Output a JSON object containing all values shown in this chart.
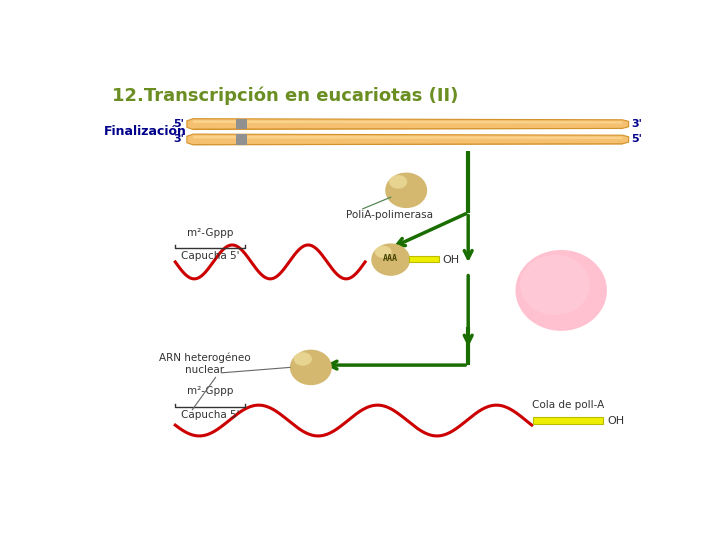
{
  "title": "12.Transcripción en eucariotas (II)",
  "title_color": "#6b8e23",
  "title_fontsize": 13,
  "bg_color": "#ffffff",
  "label_finalizacion": "Finalización",
  "label_finalizacion_color": "#00008b",
  "strand_color": "#f5c070",
  "strand_highlight": "#fde0a0",
  "strand_shadow": "#d4922a",
  "strand_mark_color": "#909090",
  "strand_5_3_color": "#00008b",
  "arrow_green": "#1a6e00",
  "rna_color": "#cc0000",
  "blob_fill": "#d4b870",
  "blob_highlight": "#e8d090",
  "pink_fill": "#ffb6c8",
  "pink_edge": "#ffaacc",
  "poli_a_color": "#eeee00",
  "poli_a_border": "#bbbb00",
  "label_polia": "PoliA-polimerasa",
  "label_m7gppp_1": "m²-Gppp",
  "label_capucha1": "Capucha 5'",
  "label_m7gppp_2": "m²-Gppp",
  "label_capucha2": "Capucha 5'",
  "label_arn": "ARN heterogéneo\nnuclear",
  "label_cola": "Cola de polI-A",
  "label_oh1": "OH",
  "label_oh2": "OH",
  "label_aaa": "AAA",
  "text_color": "#333333"
}
